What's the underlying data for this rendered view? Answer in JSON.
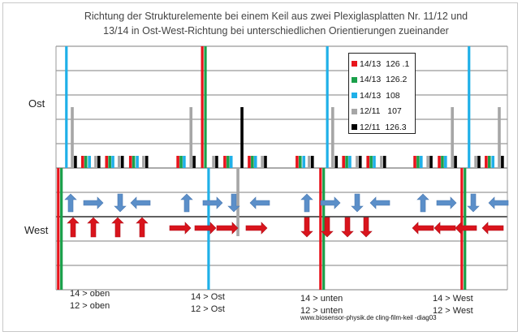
{
  "chart_data": {
    "type": "bar",
    "title_line1": "Richtung der Strukturelemente bei einem Keil aus zwei Plexiglasplatten Nr. 11/12 und",
    "title_line2": "13/14 in Ost-West-Richtung bei unterschiedlichen Orientierungen zueinander",
    "ylabels": {
      "top": "Ost",
      "bottom": "West"
    },
    "ylim": [
      -5,
      5
    ],
    "xlim": [
      0,
      100
    ],
    "grid": true,
    "legend_position": "top-right",
    "series": [
      {
        "name": "14/13  126 .1",
        "color": "#e8141c",
        "x": [
          0.5,
          5.9,
          11.2,
          16.5,
          27.0,
          32.4,
          37.4,
          42.8,
          53.4,
          58.6,
          63.7,
          69.1,
          79.5,
          84.9,
          89.9,
          95.3
        ],
        "values": [
          -5,
          0.5,
          0.5,
          0.5,
          0.5,
          5,
          0.5,
          0.5,
          0.5,
          -5,
          0.5,
          0.5,
          0.5,
          0.5,
          -5,
          0.5
        ]
      },
      {
        "name": "14/13  126.2",
        "color": "#1aa04a",
        "x": [
          1.2,
          6.6,
          11.9,
          17.2,
          27.7,
          33.1,
          38.1,
          43.5,
          54.1,
          59.3,
          64.4,
          69.8,
          80.2,
          85.6,
          90.6,
          96.0
        ],
        "values": [
          -5,
          0.5,
          0.5,
          0.5,
          0.5,
          5,
          0.5,
          0.5,
          0.5,
          -5,
          0.5,
          0.5,
          0.5,
          0.5,
          -5,
          0.5
        ]
      },
      {
        "name": "14/13  108",
        "color": "#1fb0e8",
        "x": [
          2.3,
          7.4,
          12.6,
          18.0,
          28.4,
          33.8,
          38.8,
          44.2,
          54.9,
          60.1,
          65.1,
          70.5,
          80.9,
          86.3,
          91.5,
          96.8
        ],
        "values": [
          5,
          0.5,
          0.5,
          0.5,
          0.5,
          -5,
          0.5,
          0.5,
          0.5,
          5,
          0.5,
          0.5,
          0.5,
          0.5,
          5,
          0.5
        ]
      },
      {
        "name": "12/11   107",
        "color": "#a6a6a6",
        "x": [
          3.6,
          8.8,
          14.0,
          19.4,
          29.9,
          34.9,
          40.3,
          45.7,
          56.1,
          61.3,
          66.7,
          72.1,
          82.4,
          87.8,
          93.0,
          98.2
        ],
        "values": [
          2.5,
          0.5,
          0.5,
          0.5,
          2.5,
          0.5,
          -2.8,
          0.5,
          0.5,
          2.5,
          0.5,
          0.5,
          0.5,
          2.5,
          0.5,
          2.5
        ]
      },
      {
        "name": "12/11  126.3",
        "color": "#000000",
        "x": [
          4.3,
          9.5,
          14.7,
          20.1,
          30.6,
          35.6,
          41.2,
          46.4,
          56.8,
          62.1,
          67.4,
          72.8,
          83.1,
          88.5,
          93.7,
          98.9
        ],
        "values": [
          0.5,
          0.5,
          0.5,
          0.5,
          0.5,
          0.5,
          2.5,
          0.5,
          0.5,
          0.5,
          0.5,
          0.5,
          0.5,
          0.5,
          0.5,
          0.5
        ]
      }
    ],
    "arrow_groups": [
      {
        "blue": [
          "up",
          "right",
          "down",
          "left"
        ],
        "red": [
          "up",
          "up",
          "up",
          "up"
        ],
        "label14": "14 > oben",
        "label12": "12 > oben"
      },
      {
        "blue": [
          "up",
          "right",
          "down",
          "left"
        ],
        "red": [
          "right",
          "right",
          "right",
          "right"
        ],
        "label14": "14 > Ost",
        "label12": "12 > Ost"
      },
      {
        "blue": [
          "up",
          "right",
          "down",
          "left"
        ],
        "red": [
          "down",
          "down",
          "down",
          "down"
        ],
        "label14": "14 > unten",
        "label12": "12 > unten"
      },
      {
        "blue": [
          "up",
          "right",
          "down",
          "left"
        ],
        "red": [
          "left",
          "left",
          "left",
          "left"
        ],
        "label14": "14 > West",
        "label12": "12 > West"
      }
    ],
    "arrow_colors": {
      "blue": "#5b8fc9",
      "red": "#d9141c"
    },
    "footer": "www.biosensor-physik.de  cling-film-keil -diag03"
  }
}
